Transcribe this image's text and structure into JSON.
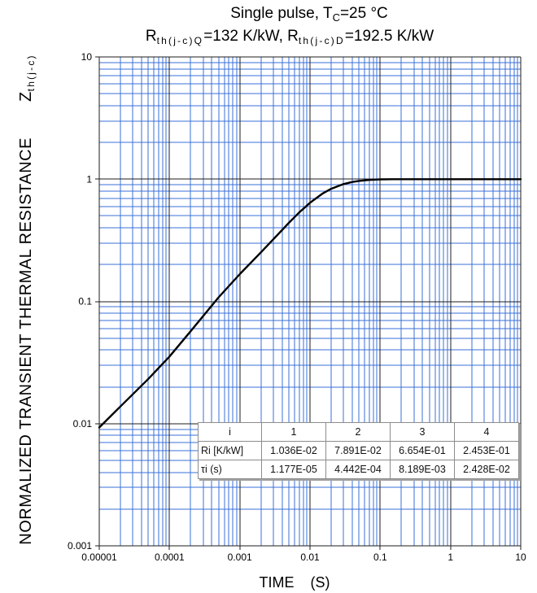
{
  "chart_data": {
    "type": "line",
    "title": {
      "line1": {
        "a": "Single pulse, T",
        "sub": "C",
        "b": "=25 °C"
      },
      "line2": {
        "a": "R",
        "sub1": "th(j-c)Q",
        "b": "=132 K/kW, R",
        "sub2": "th(j-c)D",
        "c": "=192.5 K/kW"
      }
    },
    "xlabel": "TIME    (S)",
    "ylabel": {
      "text": "NORMALIZED TRANSIENT THERMAL RESISTANCE",
      "symbol": "Z",
      "symbol_sub": "th(j-c)"
    },
    "xscale": "log",
    "yscale": "log",
    "xlim": [
      1e-05,
      10
    ],
    "ylim": [
      0.001,
      10
    ],
    "xticks": [
      "0.00001",
      "0.0001",
      "0.001",
      "0.01",
      "0.1",
      "1",
      "10"
    ],
    "yticks": [
      "10",
      "1",
      "0.1",
      "0.01",
      "0.001"
    ],
    "grid": true,
    "series": [
      {
        "x": [
          1e-05,
          2e-05,
          5e-05,
          0.0001,
          0.0002,
          0.0005,
          0.001,
          0.002,
          0.003,
          0.005,
          0.007,
          0.01,
          0.015,
          0.02,
          0.03,
          0.04,
          0.05,
          0.07,
          0.1,
          0.15,
          0.2,
          0.5,
          1,
          2,
          5,
          10
        ],
        "y": [
          0.0093,
          0.0138,
          0.0232,
          0.0354,
          0.057,
          0.108,
          0.167,
          0.252,
          0.322,
          0.439,
          0.533,
          0.641,
          0.761,
          0.834,
          0.912,
          0.948,
          0.967,
          0.986,
          0.996,
          0.999,
          1.0,
          1.0,
          1.0,
          1.0,
          1.0,
          1.0
        ]
      }
    ],
    "table": {
      "headers": [
        "i",
        "1",
        "2",
        "3",
        "4"
      ],
      "rows": [
        [
          "Ri [K/kW]",
          "1.036E-02",
          "7.891E-02",
          "6.654E-01",
          "2.453E-01"
        ],
        [
          "τi (s)",
          "1.177E-05",
          "4.442E-04",
          "8.189E-03",
          "2.428E-02"
        ]
      ]
    },
    "colors": {
      "curve": "#000000",
      "grid_minor": "#3a6fd8",
      "grid_major": "#1e1e1e"
    }
  }
}
